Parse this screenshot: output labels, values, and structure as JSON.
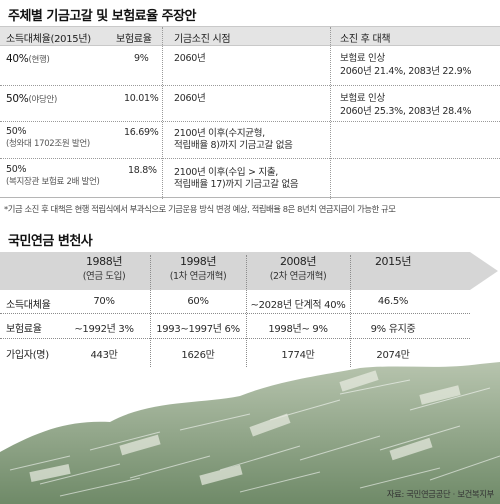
{
  "section1": {
    "title": "주체별 기금고갈 및 보험료율 주장안",
    "headers": {
      "income_ratio": "소득대체율(2015년)",
      "premium": "보험료율",
      "depletion": "기금소진 시점",
      "measure": "소진 후 대책"
    },
    "rows": [
      {
        "income_ratio": "40%",
        "income_note": "(현행)",
        "premium": "9%",
        "depletion": "2060년",
        "measure_1": "보험료 인상",
        "measure_2": "2060년 21.4%, 2083년 22.9%"
      },
      {
        "income_ratio": "50%",
        "income_note": "(야당안)",
        "premium": "10.01%",
        "depletion": "2060년",
        "measure_1": "보험료 인상",
        "measure_2": "2060년 25.3%, 2083년 28.4%"
      },
      {
        "income_ratio": "50%",
        "income_note": "(청와대 1702조원 발언)",
        "premium": "16.69%",
        "depletion_1": "2100년 이후(수지균형,",
        "depletion_2": "적립배율 8)까지 기금고갈 없음"
      },
      {
        "income_ratio": "50%",
        "income_note": "(복지장관 보험료 2배 발언)",
        "premium": "18.8%",
        "depletion_1": "2100년 이후(수입 > 지출,",
        "depletion_2": "적립배율 17)까지 기금고갈 없음"
      }
    ],
    "footnote": "*기금 소진 후 대책은 현행 적립식에서 부과식으로 기금운용 방식 변경 예상, 적립배율 8은 8년치 연금지급이 가능한 규모"
  },
  "section2": {
    "title": "국민연금 변천사",
    "eras": [
      {
        "year": "1988년",
        "note": "(연금 도입)"
      },
      {
        "year": "1998년",
        "note": "(1차 연금개혁)"
      },
      {
        "year": "2008년",
        "note": "(2차 연금개혁)"
      },
      {
        "year": "2015년",
        "note": ""
      }
    ],
    "rows": [
      {
        "label": "소득대체율",
        "values": [
          "70%",
          "60%",
          "~2028년 단계적 40%",
          "46.5%"
        ]
      },
      {
        "label": "보험료율",
        "values": [
          "~1992년 3%",
          "1993~1997년 6%",
          "1998년~ 9%",
          "9% 유지중"
        ]
      },
      {
        "label": "가입자(명)",
        "values": [
          "443만",
          "1626만",
          "1774만",
          "2074만"
        ]
      }
    ],
    "source": "자료: 국민연금공단 · 보건복지부"
  },
  "colors": {
    "header_bg": "#e4e4e4",
    "arrow_band": "#d6d6d6",
    "money_green": "#8fa887"
  }
}
